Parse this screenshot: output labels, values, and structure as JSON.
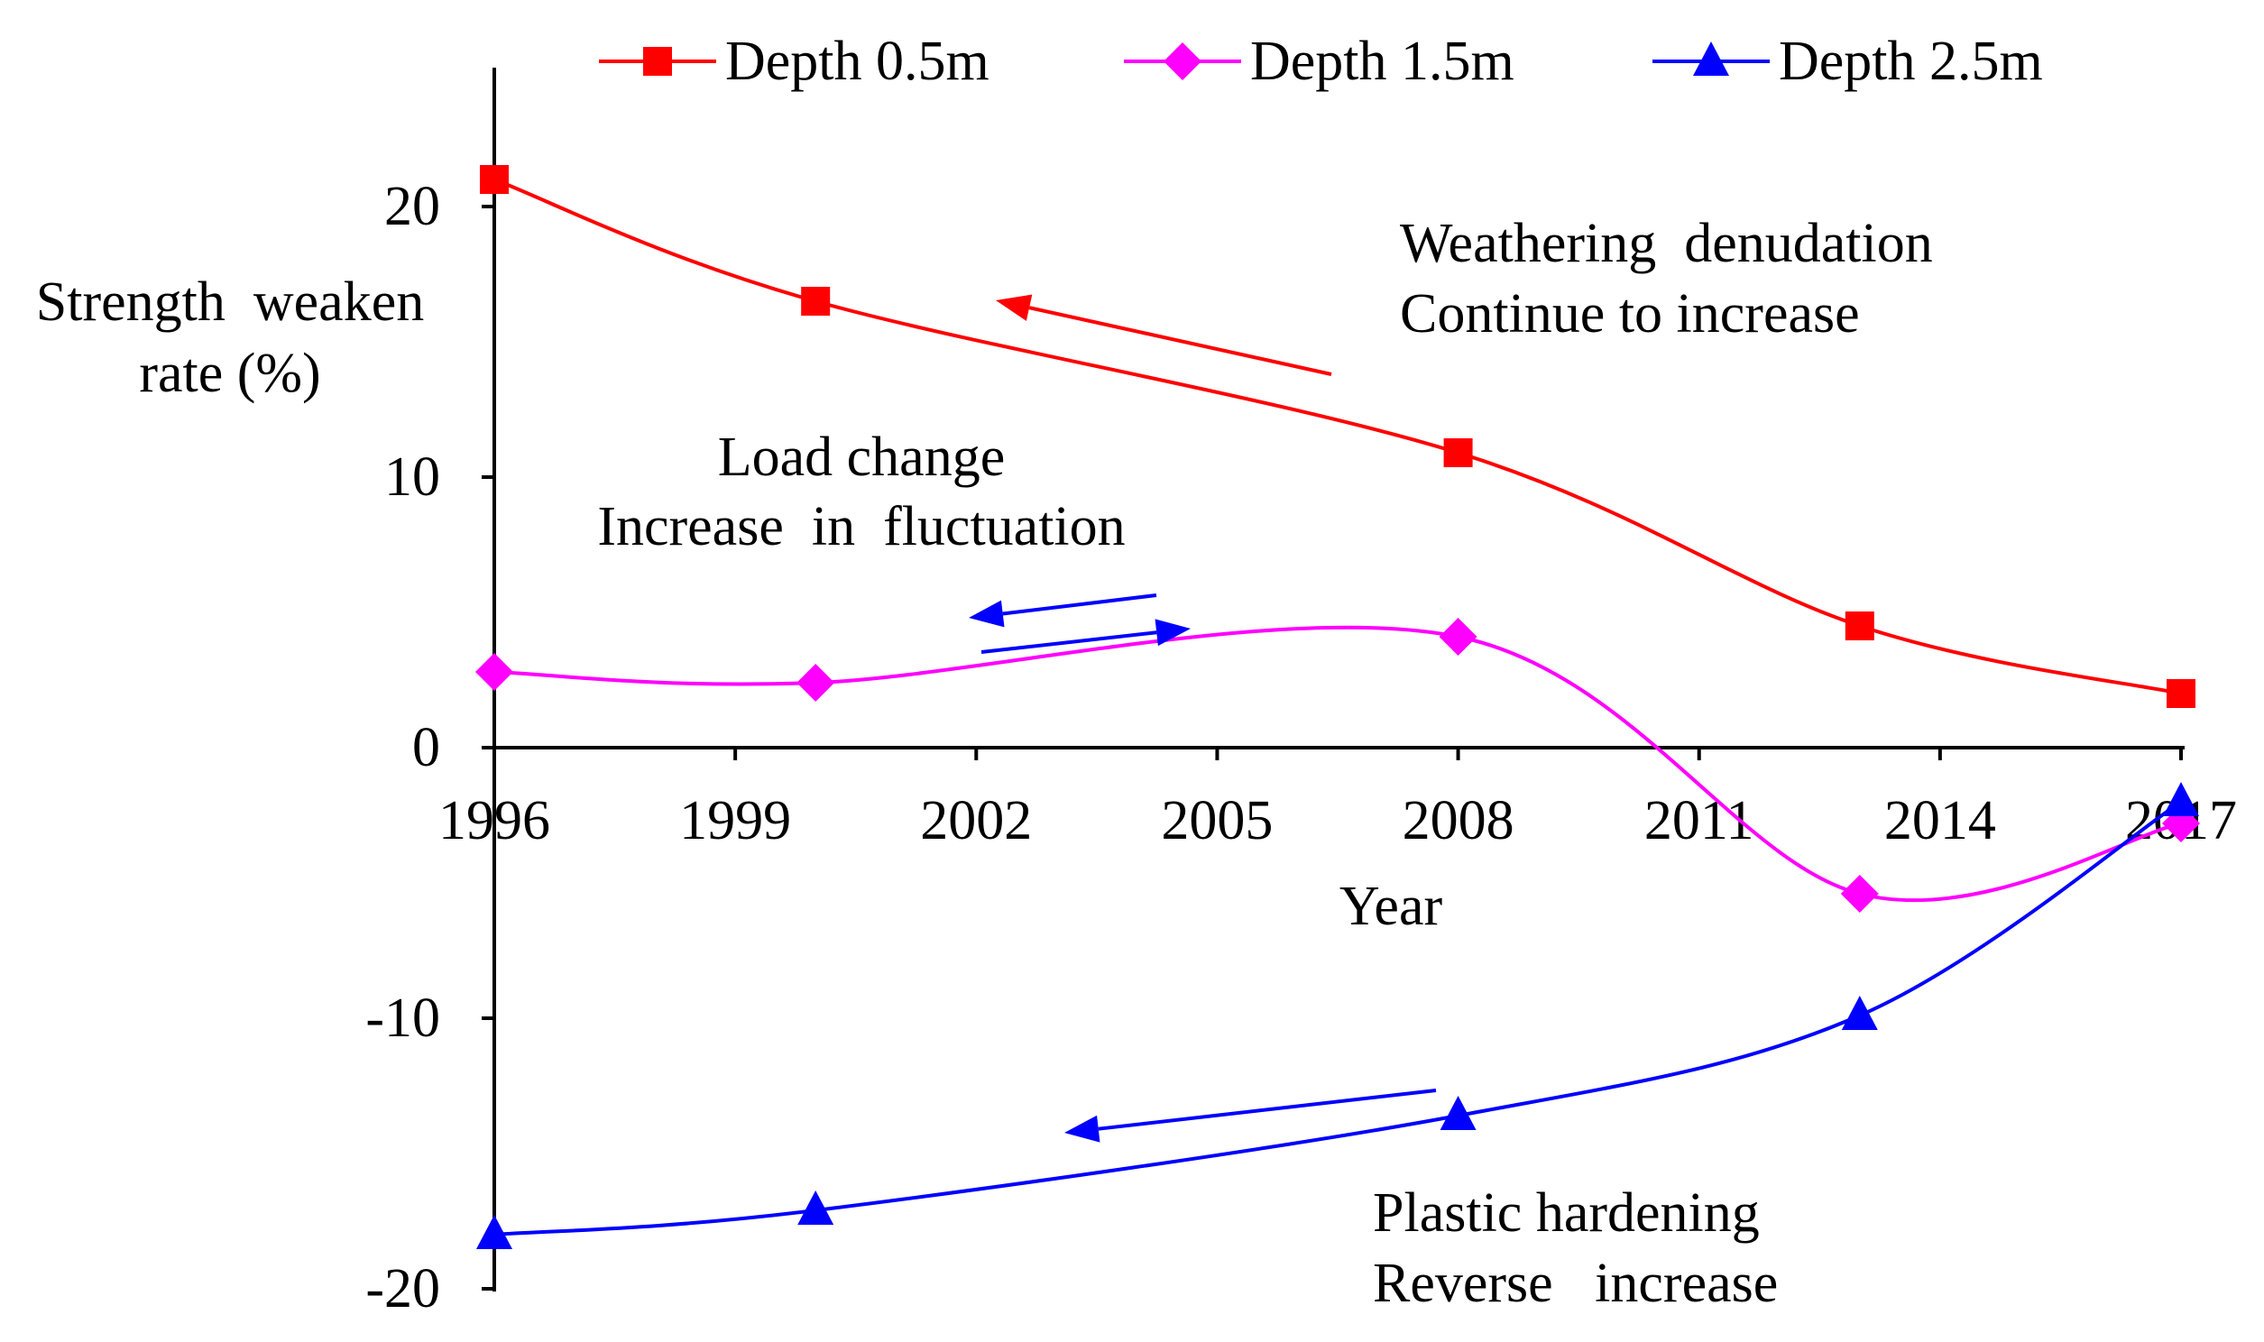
{
  "chart_data": {
    "type": "line",
    "title": "",
    "xlabel": "Year",
    "ylabel": [
      "Strength  weaken",
      "rate (%)"
    ],
    "x_ticks": [
      1996,
      1999,
      2002,
      2005,
      2008,
      2011,
      2014,
      2017
    ],
    "y_ticks": [
      20,
      10,
      0,
      -10,
      -20
    ],
    "xlim": [
      1996,
      2017
    ],
    "ylim": [
      -20,
      25
    ],
    "grid": false,
    "legend_position": "top",
    "series": [
      {
        "name": "Depth 0.5m",
        "color": "#ff0000",
        "marker": "square",
        "x": [
          1996,
          2000,
          2008,
          2013,
          2017
        ],
        "values": [
          21.0,
          16.5,
          10.9,
          4.5,
          2.0
        ]
      },
      {
        "name": "Depth 1.5m",
        "color": "#ff00ff",
        "marker": "diamond",
        "x": [
          1996,
          2000,
          2008,
          2013,
          2017
        ],
        "values": [
          2.8,
          2.4,
          4.1,
          -5.4,
          -2.8
        ]
      },
      {
        "name": "Depth 2.5m",
        "color": "#0000ff",
        "marker": "triangle",
        "x": [
          1996,
          2000,
          2008,
          2013,
          2017
        ],
        "values": [
          -18.0,
          -17.1,
          -13.6,
          -9.9,
          -2.0
        ]
      }
    ],
    "annotations": [
      {
        "id": "weathering",
        "lines": [
          "Weathering  denudation",
          "Continue to increase"
        ],
        "color": "#ff0000"
      },
      {
        "id": "load",
        "lines": [
          "Load change",
          "Increase  in  fluctuation"
        ],
        "color": "#0000ff"
      },
      {
        "id": "plastic",
        "lines": [
          "Plastic hardening",
          "Reverse   increase"
        ],
        "color": "#0000ff"
      }
    ]
  }
}
